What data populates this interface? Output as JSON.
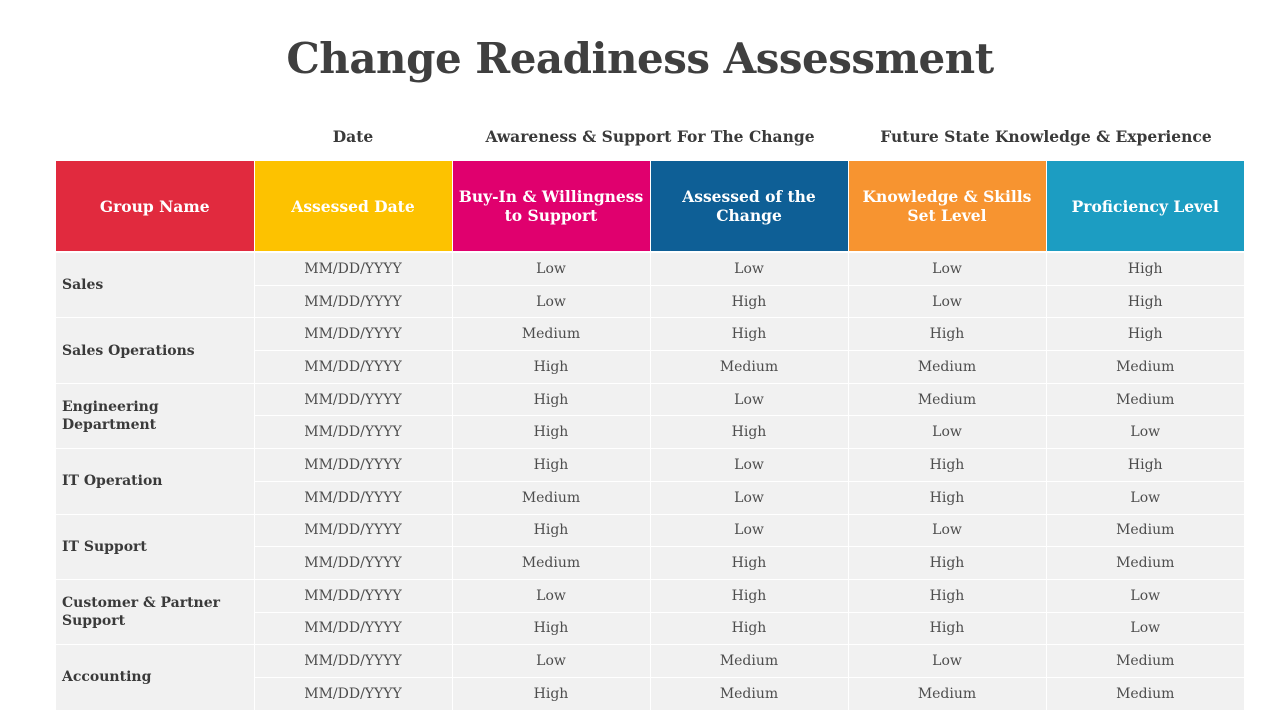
{
  "title": "Change Readiness Assessment",
  "group_labels": {
    "date": "Date",
    "awareness": "Awareness & Support For The Change",
    "future": "Future State Knowledge & Experience"
  },
  "columns": [
    {
      "label": "Group Name",
      "color": "#e12a3e"
    },
    {
      "label": "Assessed Date",
      "color": "#fdc200"
    },
    {
      "label": "Buy-In & Willingness to Support",
      "color": "#e0006e"
    },
    {
      "label": "Assessed of the Change",
      "color": "#0e5f96"
    },
    {
      "label": "Knowledge & Skills Set Level",
      "color": "#f79430"
    },
    {
      "label": "Proficiency Level",
      "color": "#1c9dc2"
    }
  ],
  "groups": [
    {
      "name": "Sales",
      "rows": [
        [
          "MM/DD/YYYY",
          "Low",
          "Low",
          "Low",
          "High"
        ],
        [
          "MM/DD/YYYY",
          "Low",
          "High",
          "Low",
          "High"
        ]
      ]
    },
    {
      "name": "Sales Operations",
      "rows": [
        [
          "MM/DD/YYYY",
          "Medium",
          "High",
          "High",
          "High"
        ],
        [
          "MM/DD/YYYY",
          "High",
          "Medium",
          "Medium",
          "Medium"
        ]
      ]
    },
    {
      "name": "Engineering Department",
      "rows": [
        [
          "MM/DD/YYYY",
          "High",
          "Low",
          "Medium",
          "Medium"
        ],
        [
          "MM/DD/YYYY",
          "High",
          "High",
          "Low",
          "Low"
        ]
      ]
    },
    {
      "name": "IT Operation",
      "rows": [
        [
          "MM/DD/YYYY",
          "High",
          "Low",
          "High",
          "High"
        ],
        [
          "MM/DD/YYYY",
          "Medium",
          "Low",
          "High",
          "Low"
        ]
      ]
    },
    {
      "name": "IT Support",
      "rows": [
        [
          "MM/DD/YYYY",
          "High",
          "Low",
          "Low",
          "Medium"
        ],
        [
          "MM/DD/YYYY",
          "Medium",
          "High",
          "High",
          "Medium"
        ]
      ]
    },
    {
      "name": "Customer & Partner Support",
      "rows": [
        [
          "MM/DD/YYYY",
          "Low",
          "High",
          "High",
          "Low"
        ],
        [
          "MM/DD/YYYY",
          "High",
          "High",
          "High",
          "Low"
        ]
      ]
    },
    {
      "name": "Accounting",
      "rows": [
        [
          "MM/DD/YYYY",
          "Low",
          "Medium",
          "Low",
          "Medium"
        ],
        [
          "MM/DD/YYYY",
          "High",
          "Medium",
          "Medium",
          "Medium"
        ]
      ]
    }
  ]
}
